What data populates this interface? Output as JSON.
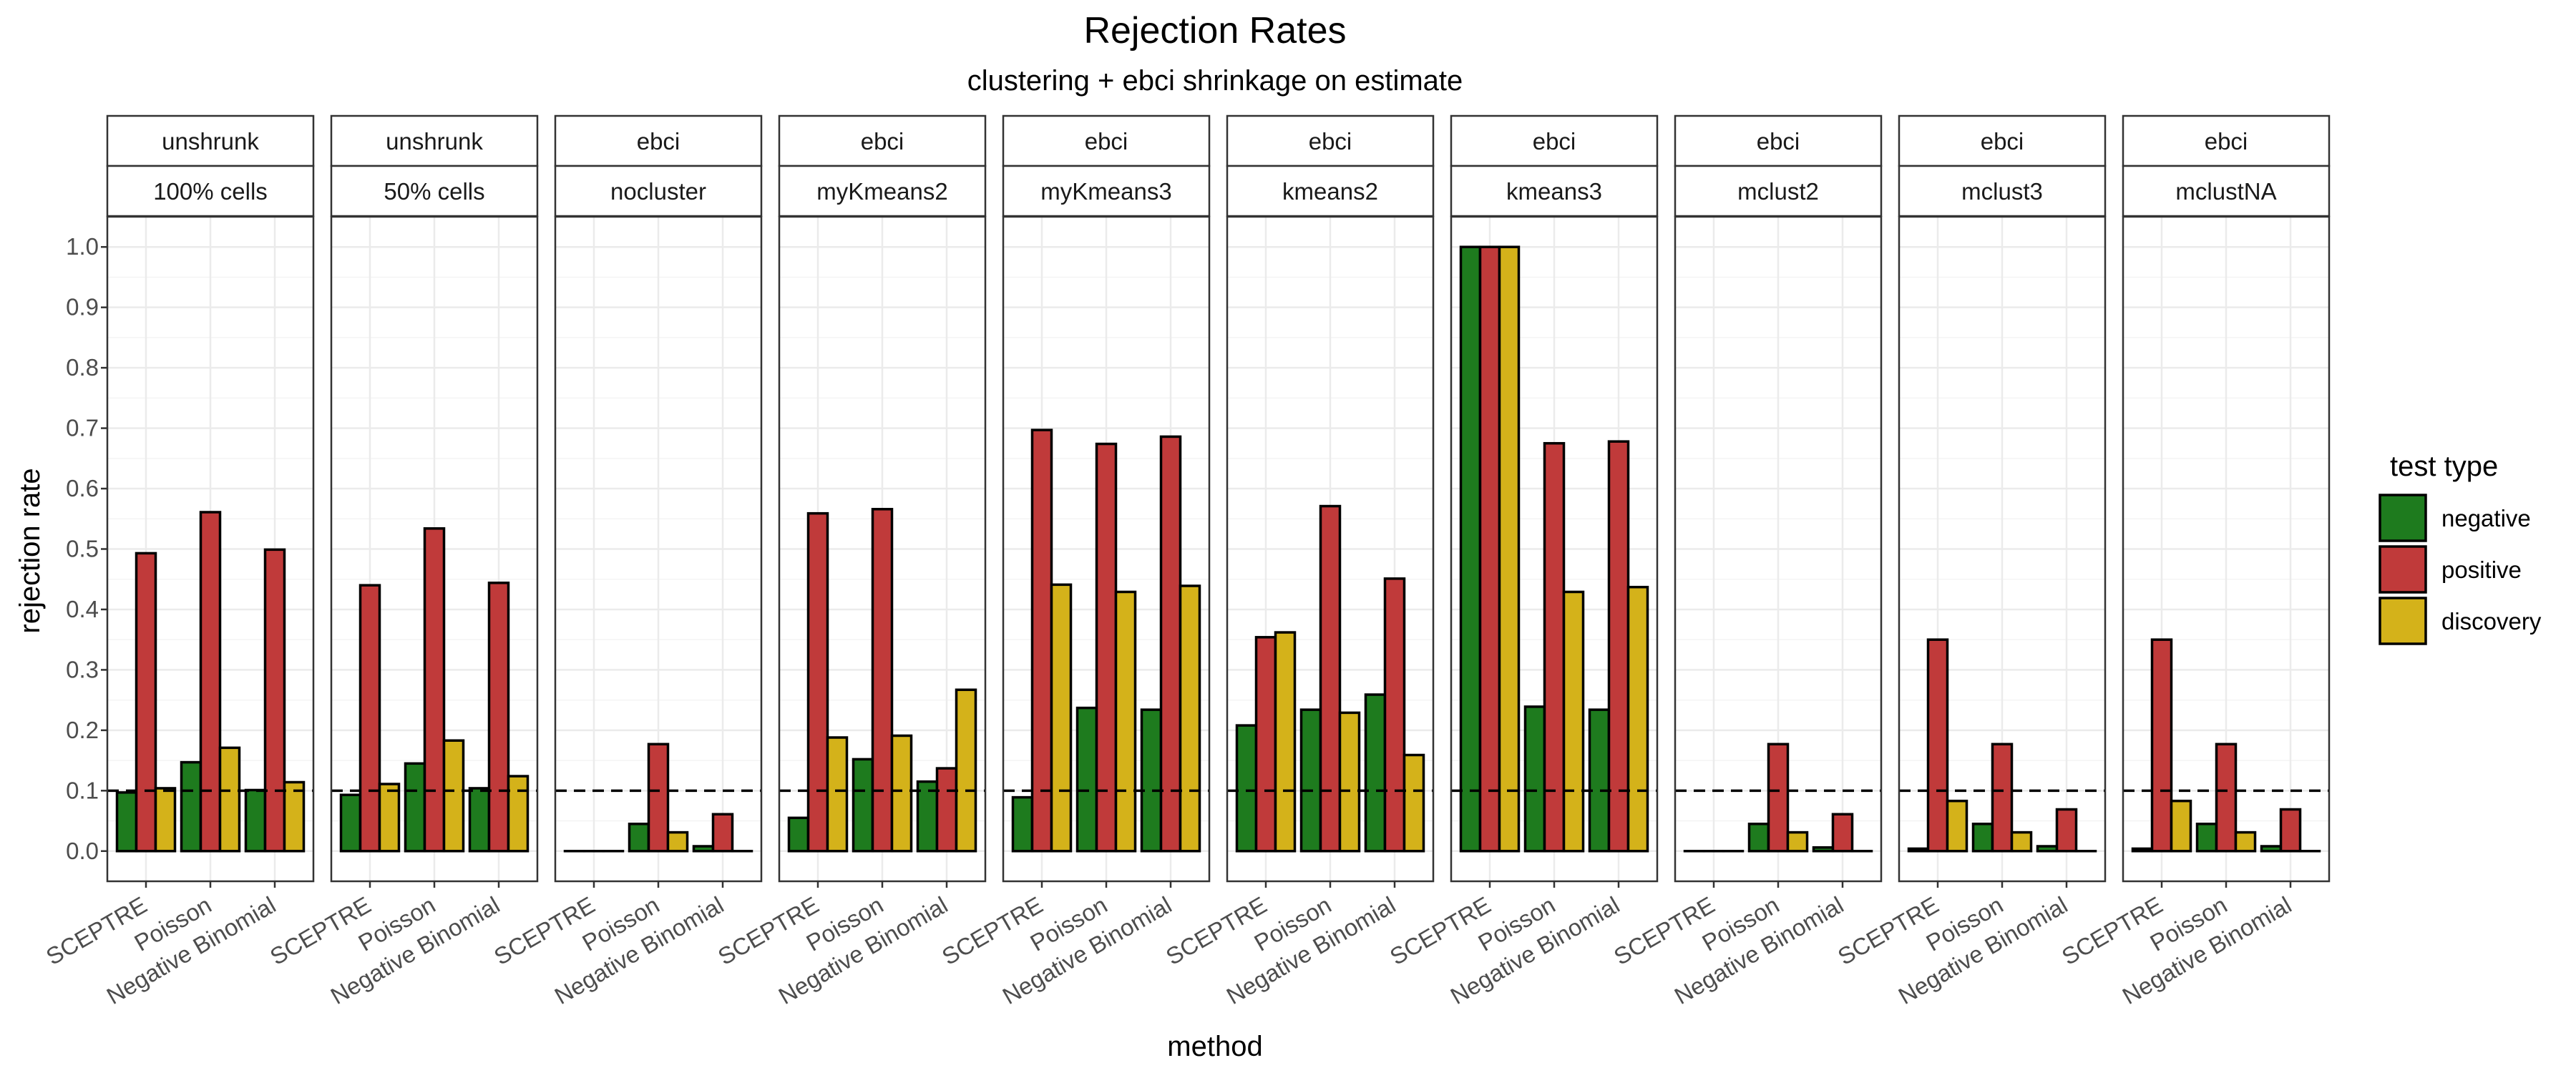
{
  "chart_data": {
    "type": "bar",
    "title": "Rejection Rates",
    "subtitle": "clustering + ebci shrinkage on estimate",
    "xlabel": "method",
    "ylabel": "rejection rate",
    "ylim": [
      -0.05,
      1.05
    ],
    "y_ticks": [
      "0.0",
      "0.1",
      "0.2",
      "0.3",
      "0.4",
      "0.5",
      "0.6",
      "0.7",
      "0.8",
      "0.9",
      "1.0"
    ],
    "reference_line": 0.1,
    "categories": [
      "SCEPTRE",
      "Poisson",
      "Negative Binomial"
    ],
    "legend": {
      "title": "test type",
      "position": "right",
      "entries": [
        {
          "name": "negative",
          "color": "#1e7b1e"
        },
        {
          "name": "positive",
          "color": "#c03a3a"
        },
        {
          "name": "discovery",
          "color": "#d4b21a"
        }
      ]
    },
    "grid": true,
    "panels": [
      {
        "strip_top": "unshrunk",
        "strip_bottom": "100% cells",
        "series": [
          {
            "name": "negative",
            "values": [
              0.097,
              0.147,
              0.101
            ]
          },
          {
            "name": "positive",
            "values": [
              0.493,
              0.561,
              0.499
            ]
          },
          {
            "name": "discovery",
            "values": [
              0.104,
              0.171,
              0.114
            ]
          }
        ]
      },
      {
        "strip_top": "unshrunk",
        "strip_bottom": "50% cells",
        "series": [
          {
            "name": "negative",
            "values": [
              0.093,
              0.145,
              0.104
            ]
          },
          {
            "name": "positive",
            "values": [
              0.44,
              0.534,
              0.444
            ]
          },
          {
            "name": "discovery",
            "values": [
              0.111,
              0.183,
              0.124
            ]
          }
        ]
      },
      {
        "strip_top": "ebci",
        "strip_bottom": "nocluster",
        "series": [
          {
            "name": "negative",
            "values": [
              0.0,
              0.045,
              0.008
            ]
          },
          {
            "name": "positive",
            "values": [
              0.0,
              0.177,
              0.061
            ]
          },
          {
            "name": "discovery",
            "values": [
              0.0,
              0.031,
              0.0
            ]
          }
        ]
      },
      {
        "strip_top": "ebci",
        "strip_bottom": "myKmeans2",
        "series": [
          {
            "name": "negative",
            "values": [
              0.055,
              0.152,
              0.115
            ]
          },
          {
            "name": "positive",
            "values": [
              0.559,
              0.566,
              0.137
            ]
          },
          {
            "name": "discovery",
            "values": [
              0.188,
              0.191,
              0.267
            ]
          }
        ]
      },
      {
        "strip_top": "ebci",
        "strip_bottom": "myKmeans3",
        "series": [
          {
            "name": "negative",
            "values": [
              0.089,
              0.237,
              0.234
            ]
          },
          {
            "name": "positive",
            "values": [
              0.697,
              0.674,
              0.686
            ]
          },
          {
            "name": "discovery",
            "values": [
              0.441,
              0.429,
              0.439
            ]
          }
        ]
      },
      {
        "strip_top": "ebci",
        "strip_bottom": "kmeans2",
        "series": [
          {
            "name": "negative",
            "values": [
              0.208,
              0.234,
              0.259
            ]
          },
          {
            "name": "positive",
            "values": [
              0.354,
              0.571,
              0.451
            ]
          },
          {
            "name": "discovery",
            "values": [
              0.362,
              0.229,
              0.159
            ]
          }
        ]
      },
      {
        "strip_top": "ebci",
        "strip_bottom": "kmeans3",
        "series": [
          {
            "name": "negative",
            "values": [
              1.0,
              0.239,
              0.234
            ]
          },
          {
            "name": "positive",
            "values": [
              1.0,
              0.675,
              0.678
            ]
          },
          {
            "name": "discovery",
            "values": [
              1.0,
              0.429,
              0.437
            ]
          }
        ]
      },
      {
        "strip_top": "ebci",
        "strip_bottom": "mclust2",
        "series": [
          {
            "name": "negative",
            "values": [
              0.0,
              0.045,
              0.006
            ]
          },
          {
            "name": "positive",
            "values": [
              0.0,
              0.177,
              0.061
            ]
          },
          {
            "name": "discovery",
            "values": [
              0.0,
              0.031,
              0.0
            ]
          }
        ]
      },
      {
        "strip_top": "ebci",
        "strip_bottom": "mclust3",
        "series": [
          {
            "name": "negative",
            "values": [
              0.004,
              0.045,
              0.008
            ]
          },
          {
            "name": "positive",
            "values": [
              0.35,
              0.177,
              0.069
            ]
          },
          {
            "name": "discovery",
            "values": [
              0.083,
              0.031,
              0.0
            ]
          }
        ]
      },
      {
        "strip_top": "ebci",
        "strip_bottom": "mclustNA",
        "series": [
          {
            "name": "negative",
            "values": [
              0.004,
              0.045,
              0.008
            ]
          },
          {
            "name": "positive",
            "values": [
              0.35,
              0.177,
              0.069
            ]
          },
          {
            "name": "discovery",
            "values": [
              0.083,
              0.031,
              0.0
            ]
          }
        ]
      }
    ]
  }
}
